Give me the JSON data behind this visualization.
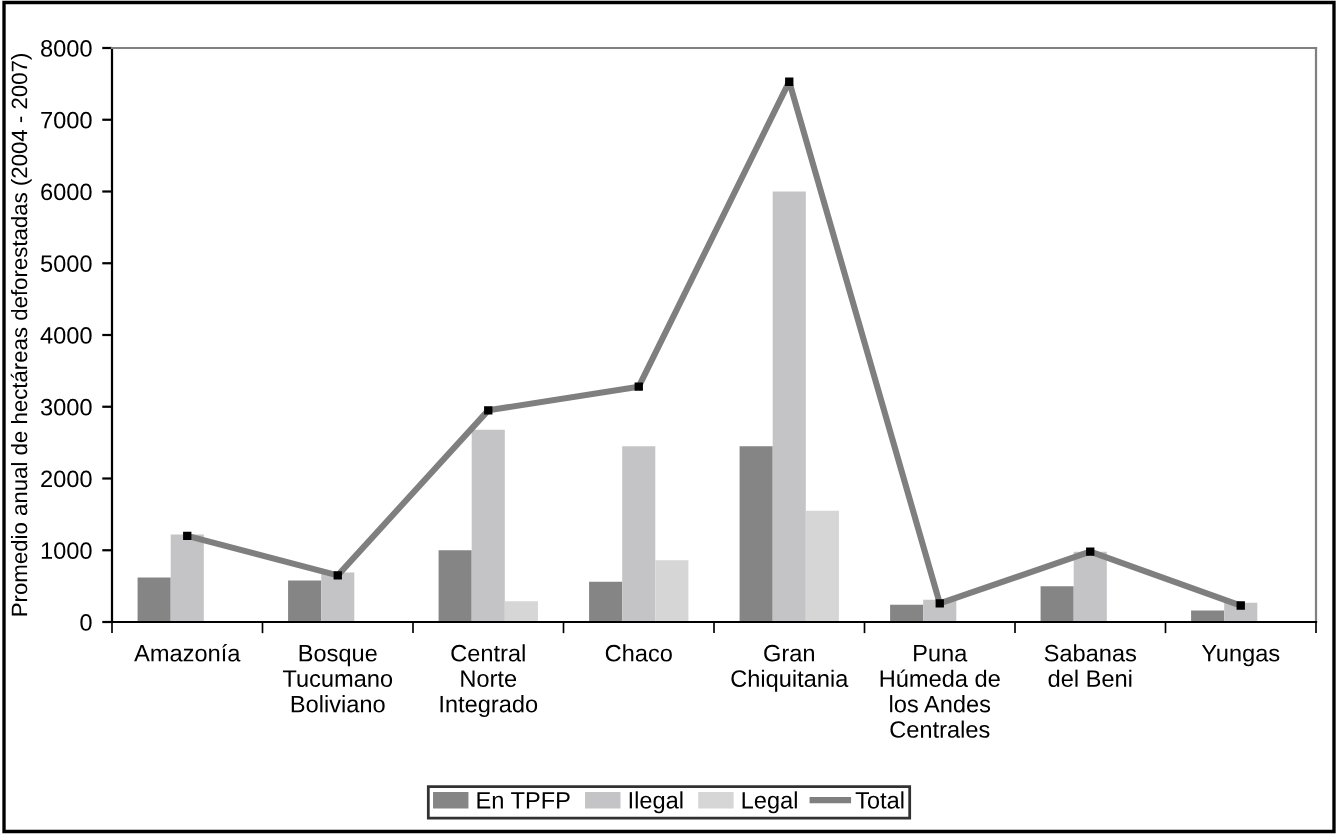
{
  "chart_data": {
    "type": "bar",
    "ylabel": "Promedio anual de hectáreas deforestadas (2004 - 2007)",
    "categories": [
      "Amazonía",
      "Bosque\nTucumano\nBoliviano",
      "Central\nNorte\nIntegrado",
      "Chaco",
      "Gran\nChiquitania",
      "Puna\nHúmeda de\nlos Andes\nCentrales",
      "Sabanas\ndel Beni",
      "Yungas"
    ],
    "series": [
      {
        "name": "En TPFP",
        "color": "#858585",
        "values": [
          620,
          580,
          1000,
          560,
          2450,
          240,
          500,
          160
        ]
      },
      {
        "name": "Ilegal",
        "color": "#c4c4c6",
        "values": [
          1220,
          690,
          2680,
          2450,
          6000,
          310,
          980,
          270
        ]
      },
      {
        "name": "Legal",
        "color": "#d6d6d6",
        "values": [
          null,
          null,
          290,
          860,
          1550,
          null,
          null,
          null
        ]
      },
      {
        "name": "Total",
        "type": "line",
        "marker": "square",
        "color": "#7f7f7f",
        "values": [
          1200,
          650,
          2950,
          3280,
          7530,
          260,
          980,
          230
        ]
      }
    ],
    "ylim": [
      0,
      8000
    ],
    "yticks": [
      0,
      1000,
      2000,
      3000,
      4000,
      5000,
      6000,
      7000,
      8000
    ],
    "grid": false,
    "legend": "bottom"
  }
}
